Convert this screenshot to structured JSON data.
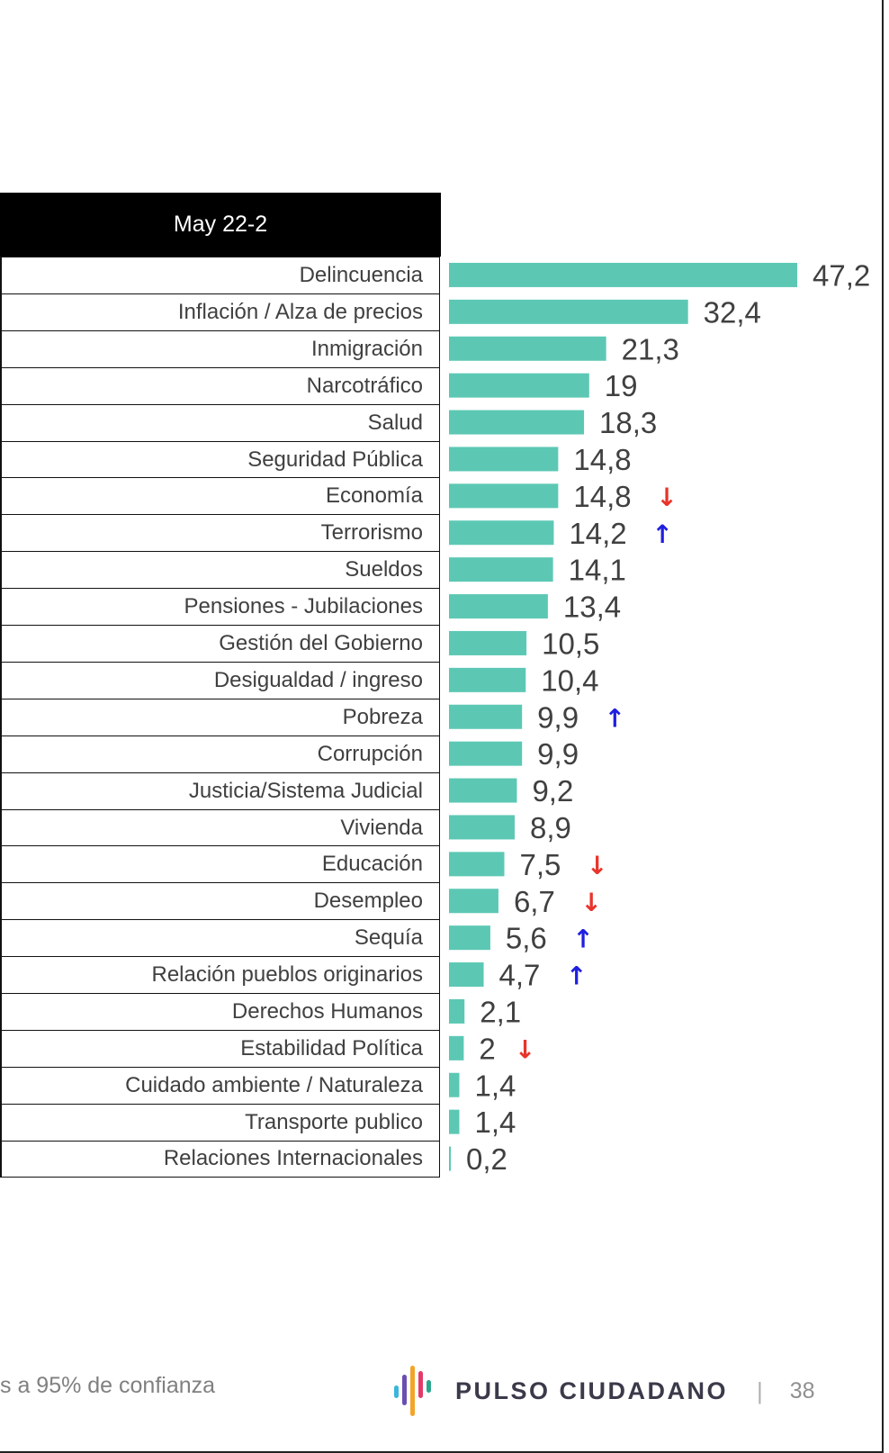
{
  "chart_data": {
    "type": "bar",
    "orientation": "horizontal",
    "column_header": "May 22-2",
    "categories": [
      "Delincuencia",
      "Inflación / Alza de precios",
      "Inmigración",
      "Narcotráfico",
      "Salud",
      "Seguridad Pública",
      "Economía",
      "Terrorismo",
      "Sueldos",
      "Pensiones - Jubilaciones",
      "Gestión del Gobierno",
      "Desigualdad / ingreso",
      "Pobreza",
      "Corrupción",
      "Justicia/Sistema Judicial",
      "Vivienda",
      "Educación",
      "Desempleo",
      "Sequía",
      "Relación pueblos originarios",
      "Derechos Humanos",
      "Estabilidad Política",
      "Cuidado ambiente / Naturaleza",
      "Transporte publico",
      "Relaciones Internacionales"
    ],
    "values": [
      47.2,
      32.4,
      21.3,
      19,
      18.3,
      14.8,
      14.8,
      14.2,
      14.1,
      13.4,
      10.5,
      10.4,
      9.9,
      9.9,
      9.2,
      8.9,
      7.5,
      6.7,
      5.6,
      4.7,
      2.1,
      2,
      1.4,
      1.4,
      0.2
    ],
    "value_labels": [
      "47,2",
      "32,4",
      "21,3",
      "19",
      "18,3",
      "14,8",
      "14,8",
      "14,2",
      "14,1",
      "13,4",
      "10,5",
      "10,4",
      "9,9",
      "9,9",
      "9,2",
      "8,9",
      "7,5",
      "6,7",
      "5,6",
      "4,7",
      "2,1",
      "2",
      "1,4",
      "1,4",
      "0,2"
    ],
    "significance": [
      "",
      "",
      "",
      "",
      "",
      "",
      "down",
      "up",
      "",
      "",
      "",
      "",
      "up",
      "",
      "",
      "",
      "down",
      "down",
      "up",
      "up",
      "",
      "down",
      "",
      "",
      ""
    ],
    "arrow_glyphs": {
      "up": "↑",
      "down": "↓"
    },
    "colors": {
      "bar": "#5cc8b4",
      "up": "#1f1fe0",
      "down": "#e8342a",
      "label": "#404040"
    }
  },
  "footer": {
    "note": "s a 95% de confianza",
    "brand": "PULSO CIUDADANO",
    "separator": "|",
    "page_number": "38"
  }
}
